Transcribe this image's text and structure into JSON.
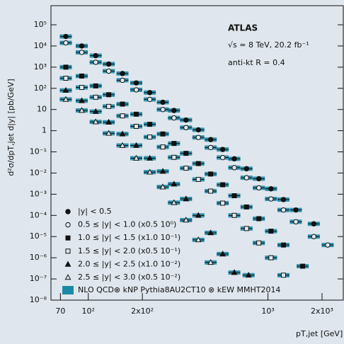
{
  "chart_data": {
    "type": "scatter",
    "y_label": "d²σ/dpT,jet d|y| [pb/GeV]",
    "x_label": "pT,jet [GeV]",
    "annotations": [
      "ATLAS",
      "√s = 8 TeV, 20.2 fb⁻¹",
      "anti-kt R = 0.4"
    ],
    "log_x": true,
    "log_y": true,
    "xlim": [
      62,
      2650
    ],
    "ylim": [
      1e-08,
      800000
    ],
    "xticks": [
      70,
      {
        "value": 100,
        "label": "10²"
      },
      {
        "value": 200,
        "label": "2x10²"
      },
      {
        "value": 1000,
        "label": "10³"
      },
      {
        "value": 2000,
        "label": "2x10³"
      }
    ],
    "yticks": [
      {
        "value": 100000,
        "label": "10⁵"
      },
      {
        "value": 10000,
        "label": "10⁴"
      },
      {
        "value": 1000,
        "label": "10³"
      },
      {
        "value": 100,
        "label": "10²"
      },
      10,
      1,
      {
        "value": 0.1,
        "label": "10⁻¹"
      },
      {
        "value": 0.01,
        "label": "10⁻²"
      },
      {
        "value": 0.001,
        "label": "10⁻³"
      },
      {
        "value": 0.0001,
        "label": "10⁻⁴"
      },
      {
        "value": 1e-05,
        "label": "10⁻⁵"
      },
      {
        "value": 1e-06,
        "label": "10⁻⁶"
      },
      {
        "value": 1e-07,
        "label": "10⁻⁷"
      },
      {
        "value": 1e-08,
        "label": "10⁻⁸"
      }
    ],
    "band_name": "NLO QCD⊗ kNP Pythia8AU2CT10 ⊗ kEW MMHT2014",
    "band_color": "#1b8aa6",
    "series": [
      {
        "name": "|y| < 0.5",
        "marker": "circle-filled",
        "color": "#111111",
        "x": [
          75,
          92,
          110,
          130,
          155,
          185,
          220,
          260,
          300,
          350,
          410,
          480,
          560,
          650,
          760,
          890,
          1040,
          1220,
          1430,
          1800
        ],
        "values": [
          28000,
          10000,
          3500,
          1400,
          500,
          180,
          63,
          22,
          9,
          3.2,
          1.1,
          0.38,
          0.13,
          0.047,
          0.016,
          0.0054,
          0.0018,
          0.00056,
          0.00018,
          4e-05
        ]
      },
      {
        "name": "0.5 ≤ |y| < 1.0 (x0.5 10⁰)",
        "marker": "circle-open",
        "color": "#111111",
        "x": [
          75,
          92,
          110,
          130,
          155,
          185,
          220,
          260,
          300,
          350,
          410,
          480,
          560,
          650,
          760,
          890,
          1040,
          1220,
          1430,
          1800,
          2150
        ],
        "values": [
          14000,
          5000,
          1700,
          650,
          240,
          85,
          30,
          10,
          4,
          1.4,
          0.48,
          0.16,
          0.054,
          0.018,
          0.006,
          0.002,
          0.0006,
          0.00018,
          5e-05,
          1e-05,
          4e-06
        ]
      },
      {
        "name": "1.0 ≤ |y| < 1.5 (x1.0 10⁻¹)",
        "marker": "square-filled",
        "color": "#111111",
        "x": [
          75,
          92,
          110,
          130,
          155,
          185,
          220,
          260,
          300,
          350,
          410,
          480,
          560,
          650,
          760,
          890,
          1040,
          1220,
          1560
        ],
        "values": [
          1000,
          380,
          130,
          50,
          18,
          6,
          2,
          0.7,
          0.25,
          0.085,
          0.028,
          0.009,
          0.0028,
          0.00085,
          0.00025,
          7e-05,
          1.8e-05,
          4e-06,
          4e-07
        ]
      },
      {
        "name": "1.5 ≤ |y| < 2.0 (x0.5 10⁻¹)",
        "marker": "square-open",
        "color": "#111111",
        "x": [
          75,
          92,
          110,
          130,
          155,
          185,
          220,
          260,
          300,
          350,
          410,
          480,
          560,
          650,
          760,
          890,
          1040,
          1220
        ],
        "values": [
          300,
          110,
          38,
          14,
          5,
          1.6,
          0.5,
          0.17,
          0.055,
          0.017,
          0.005,
          0.0014,
          0.00038,
          0.0001,
          2.4e-05,
          5e-06,
          1e-06,
          1.5e-07
        ]
      },
      {
        "name": "2.0 ≤ |y| < 2.5 (x1.0 10⁻²)",
        "marker": "triangle-filled",
        "color": "#111111",
        "x": [
          75,
          92,
          110,
          130,
          155,
          185,
          220,
          260,
          300,
          350,
          410,
          480,
          560,
          650,
          780
        ],
        "values": [
          80,
          26,
          8,
          2.5,
          0.7,
          0.2,
          0.05,
          0.012,
          0.003,
          0.0006,
          0.0001,
          1.5e-05,
          1.5e-06,
          2e-07,
          1.5e-07
        ]
      },
      {
        "name": "2.5 ≤ |y| < 3.0 (x0.5 10⁻²)",
        "marker": "triangle-open",
        "color": "#111111",
        "x": [
          75,
          92,
          110,
          130,
          155,
          185,
          220,
          260,
          300,
          350,
          410,
          480
        ],
        "values": [
          30,
          9,
          2.6,
          0.75,
          0.2,
          0.05,
          0.011,
          0.0022,
          0.0004,
          6e-05,
          7e-06,
          6e-07
        ]
      }
    ]
  }
}
